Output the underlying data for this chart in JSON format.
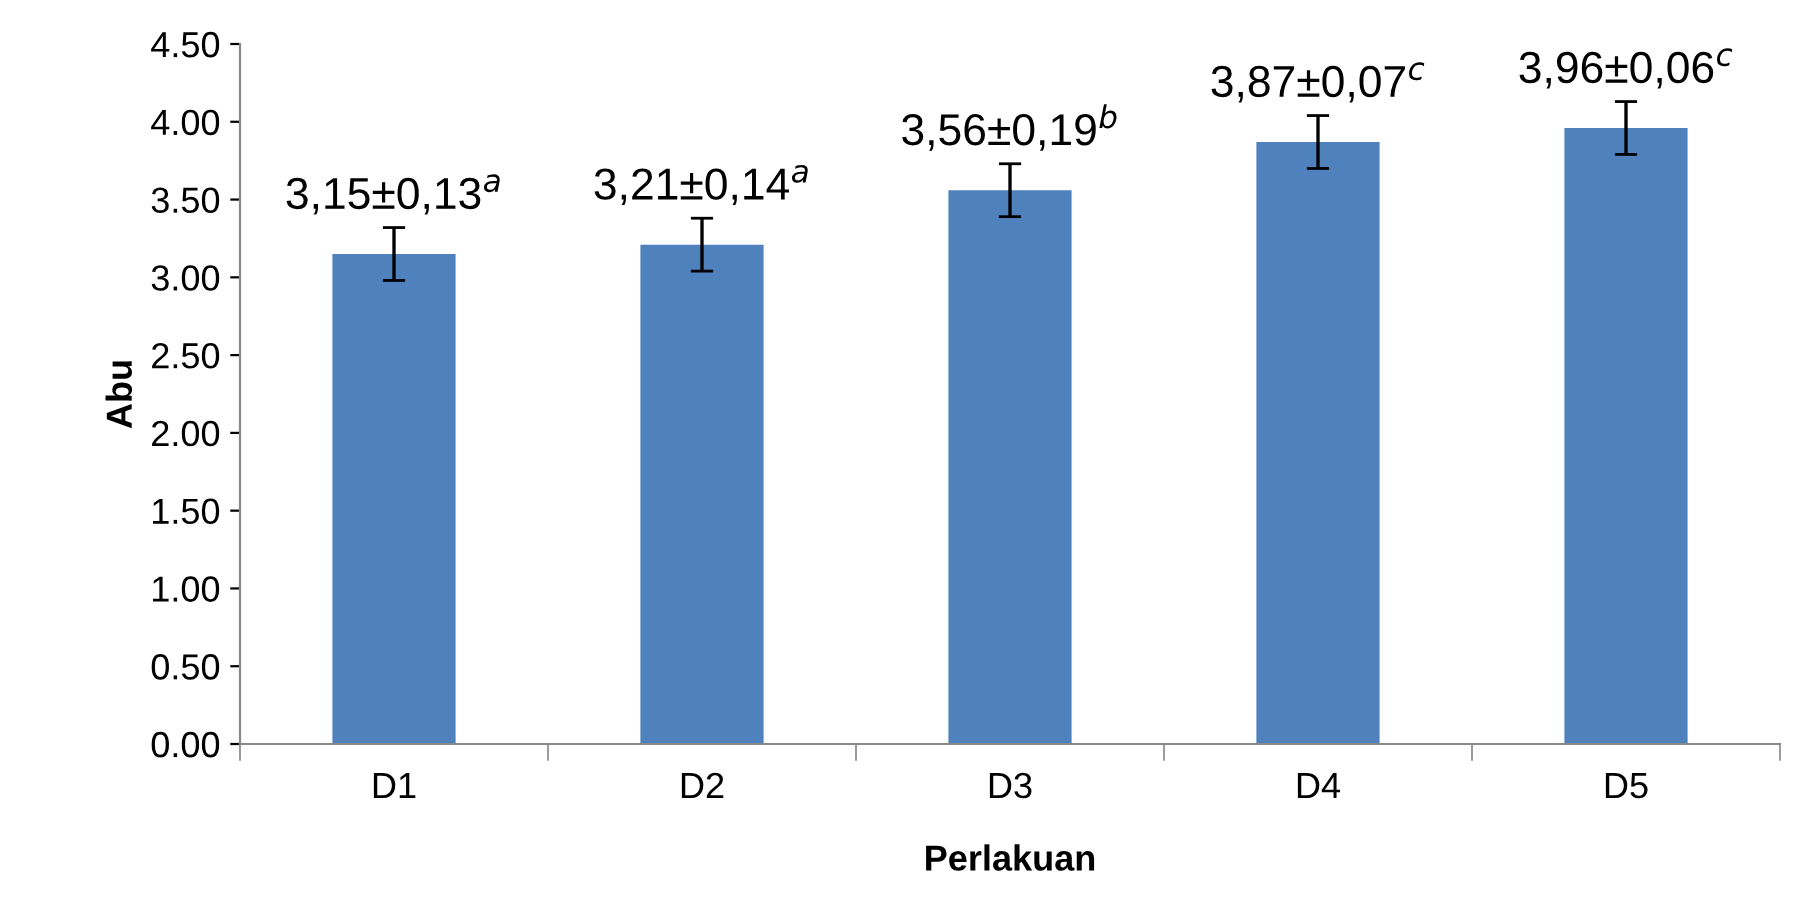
{
  "chart_data": {
    "type": "bar",
    "xlabel": "Perlakuan",
    "ylabel": "Abu",
    "categories": [
      "D1",
      "D2",
      "D3",
      "D4",
      "D5"
    ],
    "values": [
      3.15,
      3.21,
      3.56,
      3.87,
      3.96
    ],
    "errors": [
      0.17,
      0.17,
      0.17,
      0.17,
      0.17
    ],
    "value_labels": [
      "3,15±0,13$^{a}$",
      "3,21±0,14$^{a}$",
      "3,56±0,19$^{b}$",
      "3,87±0,07$^{c}$",
      "3,96±0,06$^{c}$"
    ],
    "color": "#4f81bd",
    "ylim": [
      0,
      4.5
    ],
    "yticks": [
      {
        "value": 0,
        "label": "0.00"
      },
      {
        "value": 0.5,
        "label": "0.50"
      },
      {
        "value": 1,
        "label": "1.00"
      },
      {
        "value": 1.5,
        "label": "1.50"
      },
      {
        "value": 2,
        "label": "2.00"
      },
      {
        "value": 2.5,
        "label": "2.50"
      },
      {
        "value": 3,
        "label": "3.00"
      },
      {
        "value": 3.5,
        "label": "3.50"
      },
      {
        "value": 4,
        "label": "4.00"
      },
      {
        "value": 4.5,
        "label": "4.50"
      }
    ],
    "grid": false,
    "legend": false
  }
}
